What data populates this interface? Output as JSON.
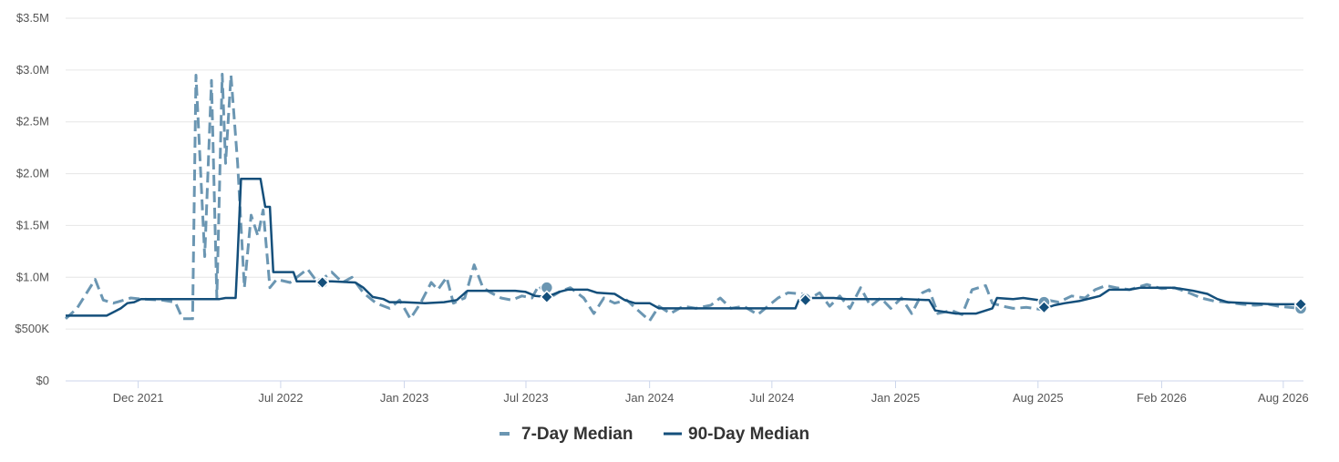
{
  "chart_data": {
    "type": "line",
    "title": "",
    "xlabel": "",
    "ylabel": "",
    "ylim": [
      0,
      3500000
    ],
    "xlim": [
      "2021-08-15",
      "2026-08-31"
    ],
    "grid": true,
    "legend_position": "bottom-center",
    "y_ticks": [
      {
        "value": 0,
        "label": "$0"
      },
      {
        "value": 500000,
        "label": "$500K"
      },
      {
        "value": 1000000,
        "label": "$1.0M"
      },
      {
        "value": 1500000,
        "label": "$1.5M"
      },
      {
        "value": 2000000,
        "label": "$2.0M"
      },
      {
        "value": 2500000,
        "label": "$2.5M"
      },
      {
        "value": 3000000,
        "label": "$3.0M"
      },
      {
        "value": 3500000,
        "label": "$3.5M"
      }
    ],
    "x_ticks": [
      {
        "value": "2021-12-01",
        "label": "Dec 2021"
      },
      {
        "value": "2022-07-01",
        "label": "Jul 2022"
      },
      {
        "value": "2023-01-01",
        "label": "Jan 2023"
      },
      {
        "value": "2023-07-01",
        "label": "Jul 2023"
      },
      {
        "value": "2024-01-01",
        "label": "Jan 2024"
      },
      {
        "value": "2024-07-01",
        "label": "Jul 2024"
      },
      {
        "value": "2025-01-01",
        "label": "Jan 2025"
      },
      {
        "value": "2025-08-01",
        "label": "Aug 2025"
      },
      {
        "value": "2026-02-01",
        "label": "Feb 2026"
      },
      {
        "value": "2026-08-01",
        "label": "Aug 2026"
      }
    ],
    "series": [
      {
        "name": "7-Day Median",
        "style": "dashed",
        "color": "#6b96b2",
        "points": [
          [
            "2021-08-15",
            600000
          ],
          [
            "2021-09-01",
            700000
          ],
          [
            "2021-09-28",
            980000
          ],
          [
            "2021-10-10",
            780000
          ],
          [
            "2021-10-25",
            750000
          ],
          [
            "2021-11-20",
            800000
          ],
          [
            "2021-12-05",
            790000
          ],
          [
            "2022-01-05",
            780000
          ],
          [
            "2022-01-25",
            760000
          ],
          [
            "2022-02-05",
            600000
          ],
          [
            "2022-02-20",
            600000
          ],
          [
            "2022-02-25",
            2950000
          ],
          [
            "2022-03-10",
            1200000
          ],
          [
            "2022-03-20",
            2900000
          ],
          [
            "2022-03-28",
            800000
          ],
          [
            "2022-04-05",
            2960000
          ],
          [
            "2022-04-10",
            2100000
          ],
          [
            "2022-04-18",
            2950000
          ],
          [
            "2022-04-28",
            2100000
          ],
          [
            "2022-05-08",
            900000
          ],
          [
            "2022-05-18",
            1600000
          ],
          [
            "2022-05-28",
            1400000
          ],
          [
            "2022-06-05",
            1650000
          ],
          [
            "2022-06-15",
            900000
          ],
          [
            "2022-06-25",
            980000
          ],
          [
            "2022-07-15",
            950000
          ],
          [
            "2022-08-10",
            1080000
          ],
          [
            "2022-08-25",
            950000
          ],
          [
            "2022-09-15",
            1050000
          ],
          [
            "2022-10-01",
            950000
          ],
          [
            "2022-10-15",
            1000000
          ],
          [
            "2022-11-01",
            850000
          ],
          [
            "2022-11-20",
            750000
          ],
          [
            "2022-12-10",
            700000
          ],
          [
            "2022-12-25",
            780000
          ],
          [
            "2023-01-10",
            600000
          ],
          [
            "2023-01-25",
            750000
          ],
          [
            "2023-02-10",
            950000
          ],
          [
            "2023-02-20",
            880000
          ],
          [
            "2023-03-05",
            1000000
          ],
          [
            "2023-03-15",
            750000
          ],
          [
            "2023-04-01",
            800000
          ],
          [
            "2023-04-15",
            1120000
          ],
          [
            "2023-04-28",
            900000
          ],
          [
            "2023-05-10",
            850000
          ],
          [
            "2023-05-25",
            800000
          ],
          [
            "2023-06-10",
            780000
          ],
          [
            "2023-06-25",
            820000
          ],
          [
            "2023-07-10",
            800000
          ],
          [
            "2023-07-20",
            920000
          ],
          [
            "2023-08-05",
            800000
          ],
          [
            "2023-08-20",
            860000
          ],
          [
            "2023-09-05",
            900000
          ],
          [
            "2023-09-25",
            800000
          ],
          [
            "2023-10-10",
            650000
          ],
          [
            "2023-10-25",
            800000
          ],
          [
            "2023-11-10",
            750000
          ],
          [
            "2023-11-28",
            780000
          ],
          [
            "2023-12-15",
            680000
          ],
          [
            "2024-01-01",
            580000
          ],
          [
            "2024-01-15",
            720000
          ],
          [
            "2024-02-01",
            650000
          ],
          [
            "2024-02-20",
            720000
          ],
          [
            "2024-03-10",
            700000
          ],
          [
            "2024-04-01",
            730000
          ],
          [
            "2024-04-15",
            800000
          ],
          [
            "2024-05-01",
            700000
          ],
          [
            "2024-05-20",
            720000
          ],
          [
            "2024-06-10",
            640000
          ],
          [
            "2024-06-25",
            720000
          ],
          [
            "2024-07-10",
            800000
          ],
          [
            "2024-07-25",
            850000
          ],
          [
            "2024-08-15",
            840000
          ],
          [
            "2024-08-25",
            790000
          ],
          [
            "2024-09-10",
            850000
          ],
          [
            "2024-09-25",
            720000
          ],
          [
            "2024-10-10",
            820000
          ],
          [
            "2024-10-25",
            700000
          ],
          [
            "2024-11-10",
            900000
          ],
          [
            "2024-11-25",
            720000
          ],
          [
            "2024-12-10",
            800000
          ],
          [
            "2024-12-25",
            700000
          ],
          [
            "2025-01-10",
            800000
          ],
          [
            "2025-01-25",
            650000
          ],
          [
            "2025-02-10",
            850000
          ],
          [
            "2025-02-20",
            880000
          ],
          [
            "2025-03-05",
            650000
          ],
          [
            "2025-03-25",
            680000
          ],
          [
            "2025-04-10",
            640000
          ],
          [
            "2025-04-25",
            880000
          ],
          [
            "2025-05-15",
            920000
          ],
          [
            "2025-05-25",
            750000
          ],
          [
            "2025-06-10",
            720000
          ],
          [
            "2025-06-25",
            700000
          ],
          [
            "2025-07-15",
            710000
          ],
          [
            "2025-08-05",
            690000
          ],
          [
            "2025-08-15",
            780000
          ],
          [
            "2025-09-01",
            760000
          ],
          [
            "2025-09-20",
            820000
          ],
          [
            "2025-10-10",
            800000
          ],
          [
            "2025-10-25",
            880000
          ],
          [
            "2025-11-10",
            920000
          ],
          [
            "2025-11-25",
            900000
          ],
          [
            "2025-12-15",
            880000
          ],
          [
            "2026-01-10",
            930000
          ],
          [
            "2026-02-01",
            890000
          ],
          [
            "2026-02-20",
            900000
          ],
          [
            "2026-03-10",
            860000
          ],
          [
            "2026-04-01",
            800000
          ],
          [
            "2026-04-20",
            770000
          ],
          [
            "2026-05-10",
            760000
          ],
          [
            "2026-06-01",
            740000
          ],
          [
            "2026-06-20",
            730000
          ],
          [
            "2026-07-10",
            740000
          ],
          [
            "2026-07-25",
            720000
          ],
          [
            "2026-08-27",
            700000
          ]
        ]
      },
      {
        "name": "90-Day Median",
        "style": "solid",
        "color": "#144f7b",
        "points": [
          [
            "2021-08-15",
            630000
          ],
          [
            "2021-10-15",
            630000
          ],
          [
            "2021-11-05",
            700000
          ],
          [
            "2021-11-15",
            750000
          ],
          [
            "2021-11-25",
            760000
          ],
          [
            "2021-12-05",
            790000
          ],
          [
            "2022-03-01",
            790000
          ],
          [
            "2022-04-01",
            790000
          ],
          [
            "2022-04-10",
            800000
          ],
          [
            "2022-04-25",
            800000
          ],
          [
            "2022-04-28",
            1200000
          ],
          [
            "2022-05-03",
            1950000
          ],
          [
            "2022-06-01",
            1950000
          ],
          [
            "2022-06-08",
            1680000
          ],
          [
            "2022-06-15",
            1680000
          ],
          [
            "2022-06-20",
            1050000
          ],
          [
            "2022-07-20",
            1050000
          ],
          [
            "2022-07-25",
            960000
          ],
          [
            "2022-08-20",
            960000
          ],
          [
            "2022-09-15",
            960000
          ],
          [
            "2022-10-20",
            950000
          ],
          [
            "2022-11-01",
            900000
          ],
          [
            "2022-11-15",
            810000
          ],
          [
            "2022-12-01",
            790000
          ],
          [
            "2022-12-10",
            760000
          ],
          [
            "2023-01-01",
            760000
          ],
          [
            "2023-02-01",
            750000
          ],
          [
            "2023-03-01",
            760000
          ],
          [
            "2023-03-20",
            780000
          ],
          [
            "2023-04-05",
            870000
          ],
          [
            "2023-06-15",
            870000
          ],
          [
            "2023-06-30",
            860000
          ],
          [
            "2023-07-15",
            820000
          ],
          [
            "2023-08-01",
            810000
          ],
          [
            "2023-08-20",
            860000
          ],
          [
            "2023-09-01",
            880000
          ],
          [
            "2023-10-01",
            880000
          ],
          [
            "2023-10-15",
            850000
          ],
          [
            "2023-11-10",
            840000
          ],
          [
            "2023-11-25",
            780000
          ],
          [
            "2023-12-10",
            750000
          ],
          [
            "2024-01-01",
            750000
          ],
          [
            "2024-01-15",
            700000
          ],
          [
            "2024-03-01",
            700000
          ],
          [
            "2024-07-10",
            700000
          ],
          [
            "2024-07-20",
            700000
          ],
          [
            "2024-08-05",
            700000
          ],
          [
            "2024-08-10",
            780000
          ],
          [
            "2024-08-25",
            800000
          ],
          [
            "2024-10-01",
            800000
          ],
          [
            "2024-10-20",
            790000
          ],
          [
            "2024-11-01",
            790000
          ],
          [
            "2025-01-15",
            790000
          ],
          [
            "2025-02-20",
            780000
          ],
          [
            "2025-03-01",
            680000
          ],
          [
            "2025-04-01",
            650000
          ],
          [
            "2025-05-01",
            650000
          ],
          [
            "2025-05-25",
            700000
          ],
          [
            "2025-06-01",
            800000
          ],
          [
            "2025-06-25",
            790000
          ],
          [
            "2025-07-10",
            800000
          ],
          [
            "2025-08-01",
            780000
          ],
          [
            "2025-08-08",
            780000
          ],
          [
            "2025-08-12",
            700000
          ],
          [
            "2025-08-25",
            730000
          ],
          [
            "2025-09-10",
            750000
          ],
          [
            "2025-10-01",
            770000
          ],
          [
            "2025-10-20",
            800000
          ],
          [
            "2025-11-01",
            820000
          ],
          [
            "2025-11-15",
            880000
          ],
          [
            "2025-12-15",
            880000
          ],
          [
            "2026-01-01",
            900000
          ],
          [
            "2026-02-15",
            900000
          ],
          [
            "2026-03-01",
            890000
          ],
          [
            "2026-03-20",
            870000
          ],
          [
            "2026-04-10",
            840000
          ],
          [
            "2026-04-25",
            790000
          ],
          [
            "2026-05-10",
            760000
          ],
          [
            "2026-06-10",
            750000
          ],
          [
            "2026-07-20",
            740000
          ],
          [
            "2026-08-27",
            740000
          ]
        ]
      }
    ],
    "annotations": [
      {
        "series": "7-Day Median",
        "date": "2022-09-01",
        "value": 950000
      },
      {
        "series": "7-Day Median",
        "date": "2023-08-01",
        "value": 900000
      },
      {
        "series": "7-Day Median",
        "date": "2024-08-20",
        "value": 790000
      },
      {
        "series": "7-Day Median",
        "date": "2025-08-10",
        "value": 760000
      },
      {
        "series": "7-Day Median",
        "date": "2026-08-27",
        "value": 700000
      },
      {
        "series": "90-Day Median",
        "date": "2022-09-01",
        "value": 950000
      },
      {
        "series": "90-Day Median",
        "date": "2023-08-01",
        "value": 810000
      },
      {
        "series": "90-Day Median",
        "date": "2024-08-20",
        "value": 780000
      },
      {
        "series": "90-Day Median",
        "date": "2025-08-10",
        "value": 710000
      },
      {
        "series": "90-Day Median",
        "date": "2026-08-27",
        "value": 740000
      }
    ]
  }
}
